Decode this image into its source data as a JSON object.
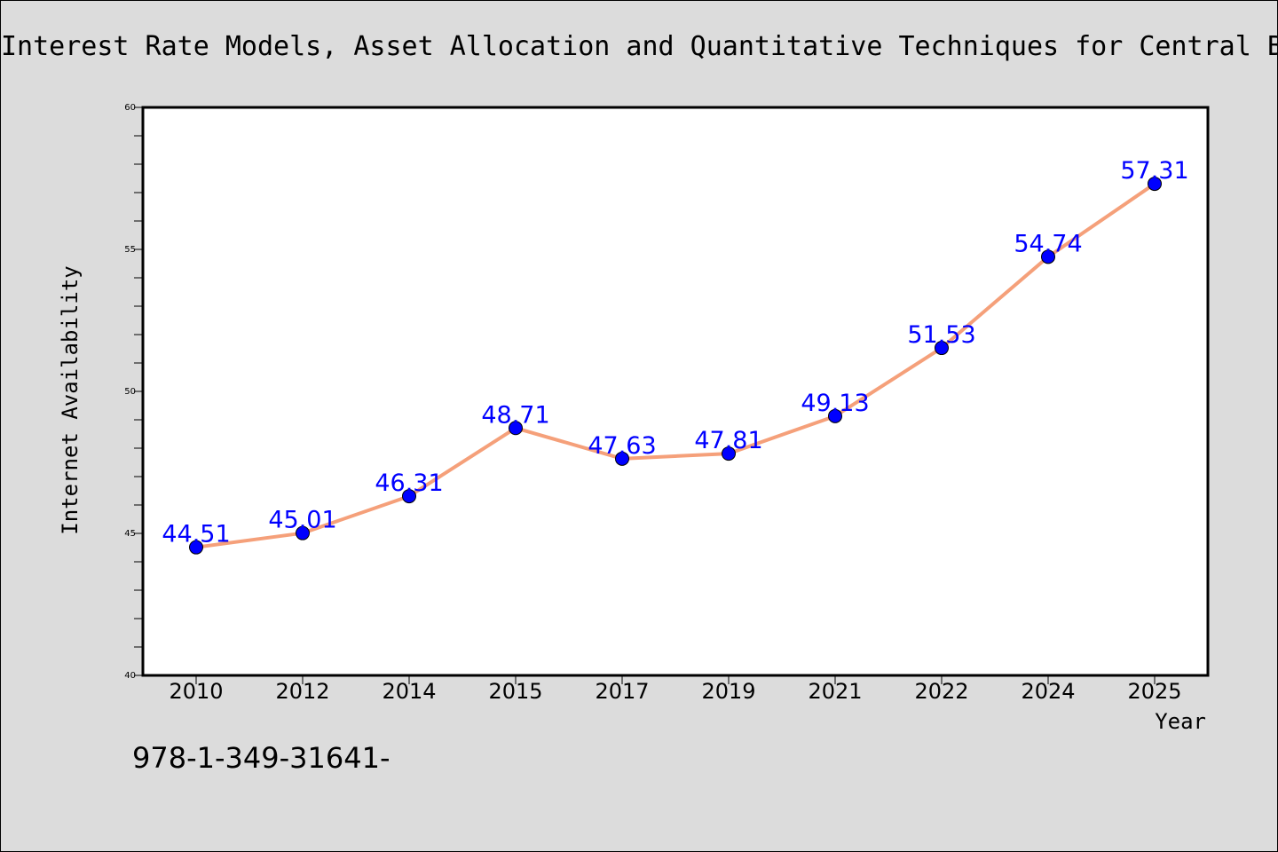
{
  "chart_data": {
    "type": "line",
    "title": "Interest Rate Models, Asset Allocation and Quantitative Techniques for Central B",
    "xlabel": "Year",
    "ylabel": "Internet Availability",
    "categories": [
      "2010",
      "2012",
      "2014",
      "2015",
      "2017",
      "2019",
      "2021",
      "2022",
      "2024",
      "2025"
    ],
    "series": [
      {
        "values": [
          44.51,
          45.01,
          46.31,
          48.71,
          47.63,
          47.81,
          49.13,
          51.53,
          54.74,
          57.31
        ],
        "data_labels": [
          "44.51",
          "45.01",
          "46.31",
          "48.71",
          "47.63",
          "47.81",
          "49.13",
          "51.53",
          "54.74",
          "57.31"
        ]
      }
    ],
    "ylim": [
      40,
      60
    ],
    "yticks": [
      "40",
      "45",
      "50",
      "55",
      "60"
    ],
    "grid": false,
    "legend": "none",
    "line_color": "#f5a07a",
    "marker_color": "#0000ff",
    "label_color": "#0000ff",
    "background_color": "#dcdcdc",
    "plot_background_color": "#ffffff"
  },
  "footnote": "978-1-349-31641-"
}
